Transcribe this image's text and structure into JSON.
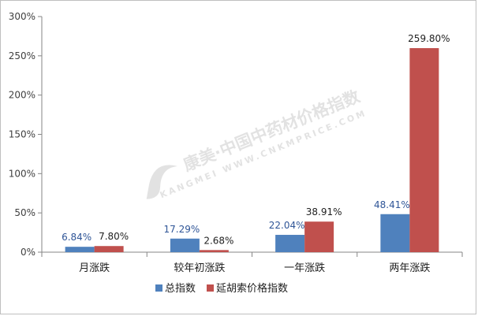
{
  "chart_data": {
    "type": "bar",
    "categories": [
      "月涨跌",
      "较年初涨跌",
      "一年涨跌",
      "两年涨跌"
    ],
    "series": [
      {
        "name": "总指数",
        "values": [
          6.84,
          17.29,
          22.04,
          48.41
        ],
        "labels": [
          "6.84%",
          "17.29%",
          "22.04%",
          "48.41%"
        ],
        "color": "#4f81bd",
        "label_color": "#2f5597"
      },
      {
        "name": "延胡索价格指数",
        "values": [
          7.8,
          2.68,
          38.91,
          259.8
        ],
        "labels": [
          "7.80%",
          "2.68%",
          "38.91%",
          "259.80%"
        ],
        "color": "#c0504d",
        "label_color": "#1f1f1f"
      }
    ],
    "yticks": [
      "0%",
      "50%",
      "100%",
      "150%",
      "200%",
      "250%",
      "300%"
    ],
    "ylim": [
      0,
      300
    ],
    "grid": false,
    "legend_position": "bottom",
    "title": "",
    "xlabel": "",
    "ylabel": ""
  },
  "watermark": {
    "text": "康美·中国中药材价格指数",
    "subtext": "KANGMEI  WWW.CNKMPRICE.COM"
  }
}
